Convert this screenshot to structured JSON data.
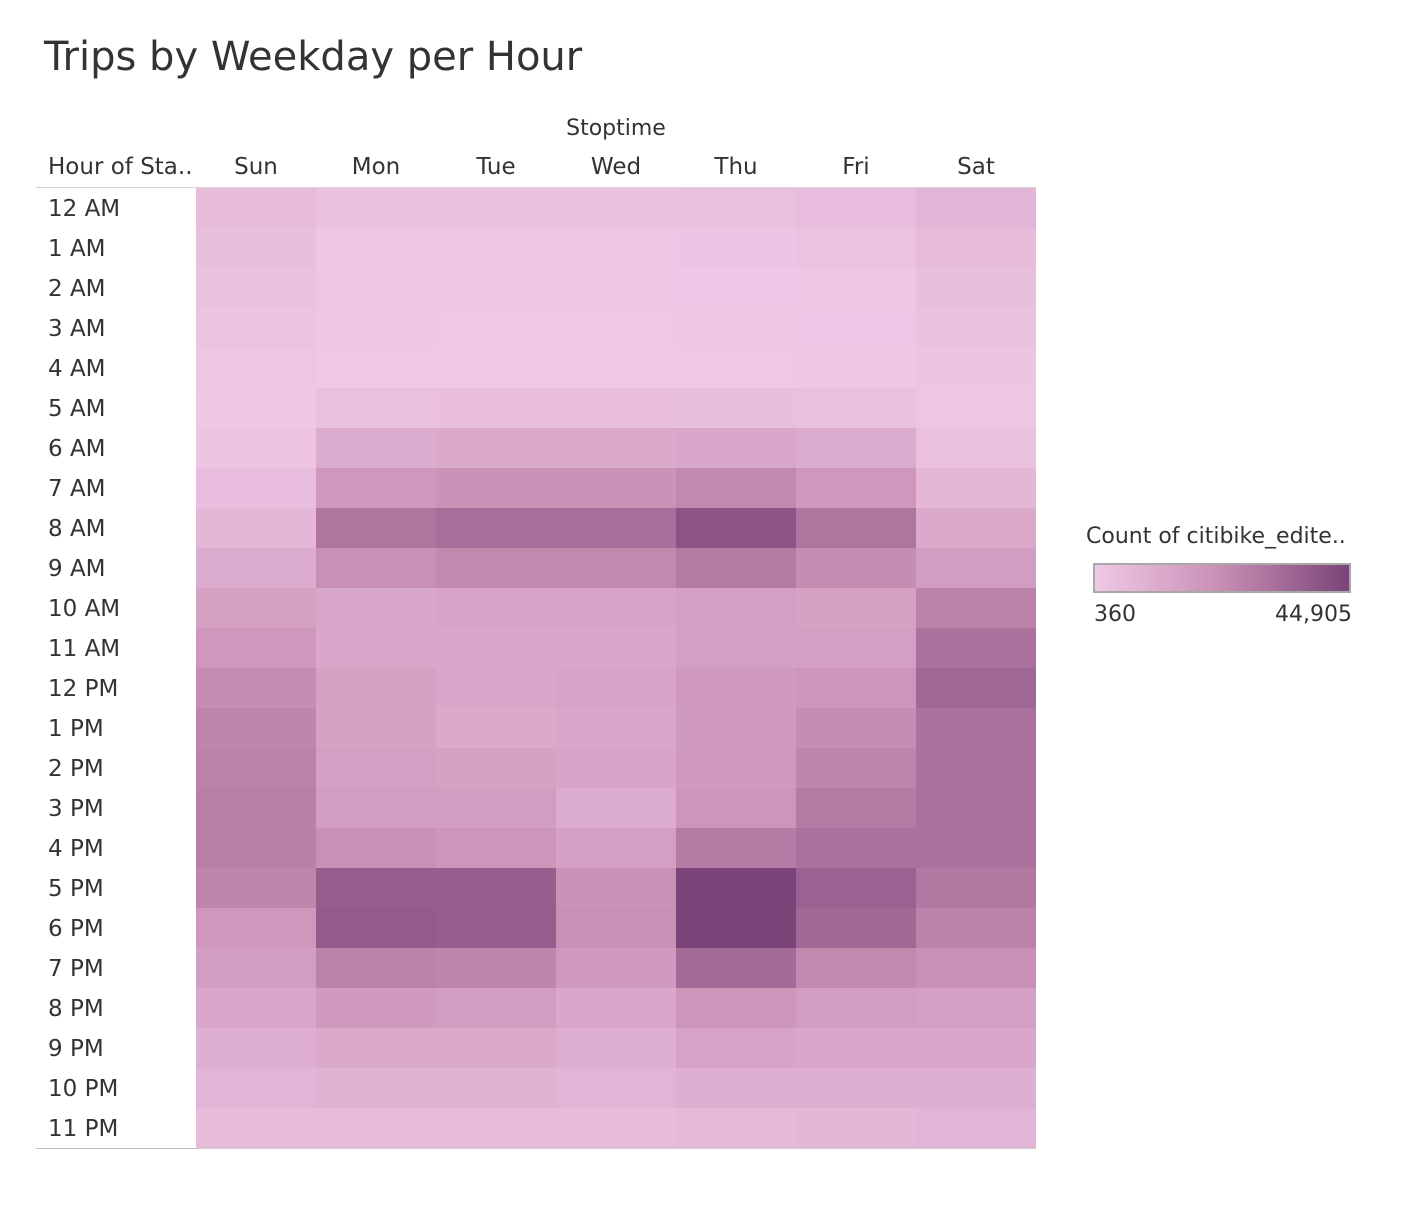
{
  "chart_data": {
    "type": "heatmap",
    "title": "Trips by Weekday per Hour",
    "column_group_label": "Stoptime",
    "row_header": "Hour of Sta..",
    "columns": [
      "Sun",
      "Mon",
      "Tue",
      "Wed",
      "Thu",
      "Fri",
      "Sat"
    ],
    "rows": [
      "12 AM",
      "1 AM",
      "2 AM",
      "3 AM",
      "4 AM",
      "5 AM",
      "6 AM",
      "7 AM",
      "8 AM",
      "9 AM",
      "10 AM",
      "11 AM",
      "12 PM",
      "1 PM",
      "2 PM",
      "3 PM",
      "4 PM",
      "5 PM",
      "6 PM",
      "7 PM",
      "8 PM",
      "9 PM",
      "10 PM",
      "11 PM"
    ],
    "values": [
      [
        5500,
        3000,
        3000,
        3000,
        3500,
        4500,
        7500
      ],
      [
        4000,
        1500,
        1300,
        1300,
        1800,
        2500,
        5500
      ],
      [
        3000,
        900,
        800,
        800,
        1000,
        1500,
        4000
      ],
      [
        2200,
        700,
        600,
        600,
        700,
        1000,
        3000
      ],
      [
        1500,
        500,
        400,
        400,
        500,
        700,
        2000
      ],
      [
        800,
        3500,
        3800,
        3800,
        4000,
        3500,
        1200
      ],
      [
        2000,
        11000,
        12000,
        12000,
        13000,
        11000,
        3000
      ],
      [
        4500,
        19000,
        21000,
        21000,
        24000,
        19000,
        7000
      ],
      [
        7000,
        30000,
        32000,
        32000,
        40000,
        30000,
        12000
      ],
      [
        11000,
        22000,
        24000,
        24000,
        28000,
        23000,
        17000
      ],
      [
        15000,
        13000,
        14000,
        14000,
        16000,
        15000,
        26000
      ],
      [
        19000,
        13000,
        13000,
        13000,
        16000,
        16000,
        31000
      ],
      [
        23000,
        15000,
        13000,
        14000,
        18000,
        20000,
        34000
      ],
      [
        25000,
        15000,
        12000,
        13000,
        18000,
        23000,
        31000
      ],
      [
        26000,
        16000,
        15000,
        14000,
        18000,
        25000,
        31000
      ],
      [
        27000,
        17000,
        17000,
        11000,
        20000,
        28000,
        31000
      ],
      [
        27000,
        22000,
        20000,
        16000,
        28000,
        31000,
        31000
      ],
      [
        25000,
        37000,
        37000,
        21000,
        44905,
        36000,
        29000
      ],
      [
        19000,
        38000,
        37000,
        22000,
        44905,
        34000,
        26000
      ],
      [
        17000,
        26000,
        25000,
        18000,
        33000,
        24000,
        22000
      ],
      [
        13000,
        18000,
        17000,
        13000,
        20000,
        17000,
        16000
      ],
      [
        10000,
        12000,
        12000,
        10000,
        14000,
        13000,
        13000
      ],
      [
        8000,
        9000,
        9000,
        8000,
        10000,
        10000,
        10000
      ],
      [
        5000,
        5000,
        5000,
        5000,
        6000,
        7000,
        8000
      ]
    ],
    "color_legend": {
      "title": "Count of citibike_edite..",
      "min_label": "360",
      "max_label": "44,905",
      "min_value": 360,
      "max_value": 44905,
      "colors": [
        "#f0c8e6",
        "#c78eb3",
        "#7a4478"
      ]
    }
  }
}
